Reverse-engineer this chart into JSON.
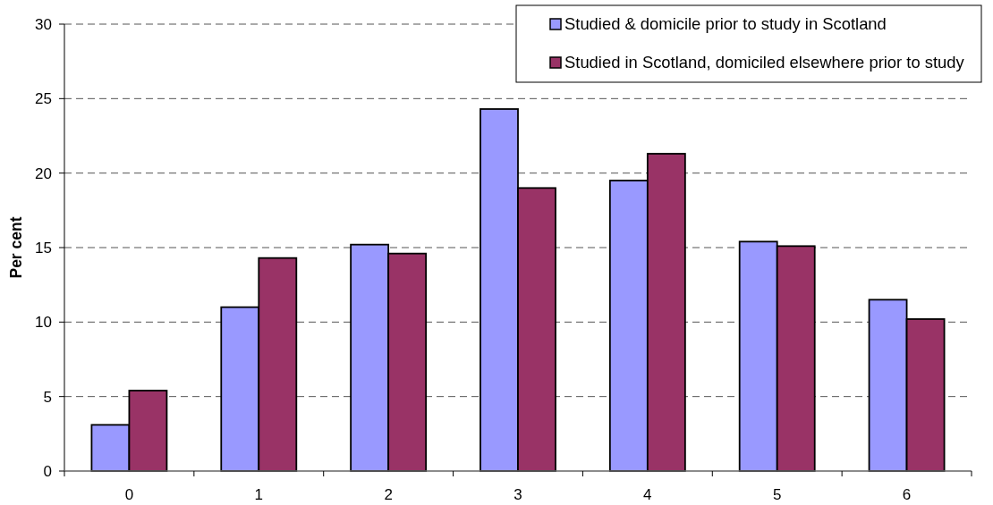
{
  "chart_data": {
    "type": "bar",
    "ylabel": "Per cent",
    "categories": [
      "0",
      "1",
      "2",
      "3",
      "4",
      "5",
      "6"
    ],
    "series": [
      {
        "name": "Studied & domicile prior to study in Scotland",
        "color": "#9999ff",
        "values": [
          3.1,
          11.0,
          15.2,
          24.3,
          19.5,
          15.4,
          11.5
        ]
      },
      {
        "name": "Studied in Scotland, domiciled elsewhere prior to study",
        "color": "#993366",
        "values": [
          5.4,
          14.3,
          14.6,
          19.0,
          21.3,
          15.1,
          10.2
        ]
      }
    ],
    "ylim": [
      0,
      30
    ],
    "yticks": [
      0,
      5,
      10,
      15,
      20,
      25,
      30
    ],
    "grid": "y",
    "legend": "top right"
  }
}
